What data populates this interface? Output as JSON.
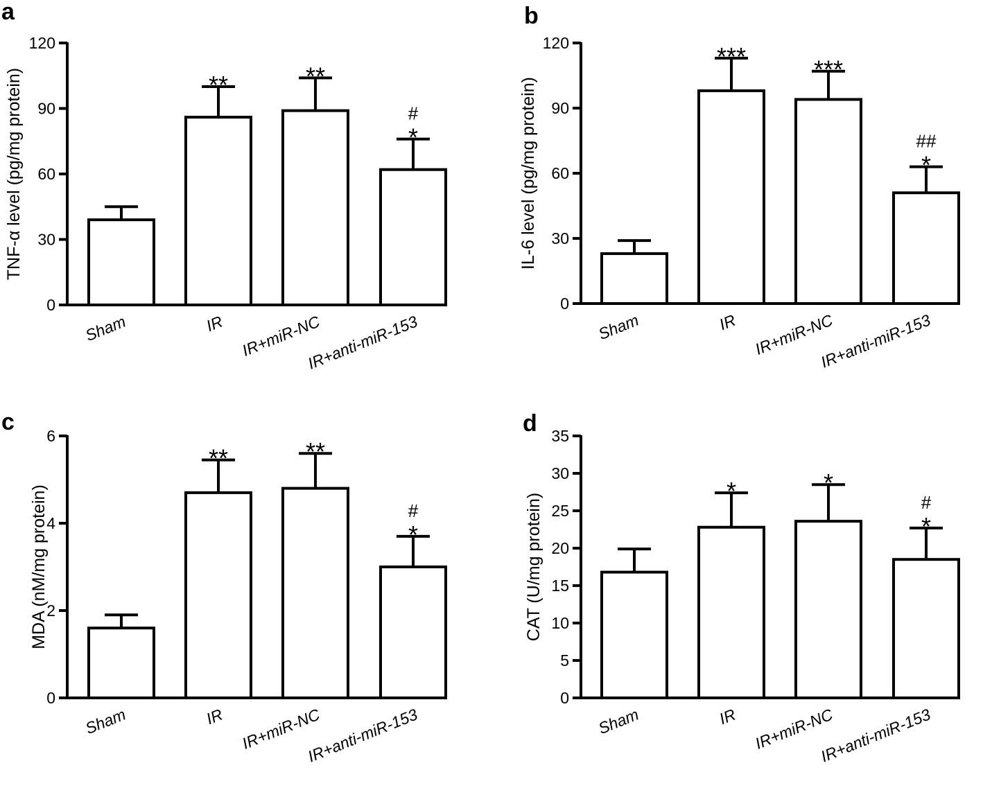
{
  "chart_data": [
    {
      "panel": "a",
      "type": "bar",
      "ylabel": "TNF-α level (pg/mg protein)",
      "categories": [
        "Sham",
        "IR",
        "IR+miR-NC",
        "IR+anti-miR-153"
      ],
      "values": [
        39,
        86,
        89,
        62
      ],
      "errors": [
        6,
        14,
        15,
        14
      ],
      "significance": [
        {
          "star": "",
          "hash": ""
        },
        {
          "star": "**",
          "hash": ""
        },
        {
          "star": "**",
          "hash": ""
        },
        {
          "star": "*",
          "hash": "#"
        }
      ],
      "yticks": [
        0,
        30,
        60,
        90,
        120
      ],
      "tick_labels": [
        "0",
        "30",
        "60",
        "90",
        "120"
      ],
      "ylim": [
        0,
        120
      ]
    },
    {
      "panel": "b",
      "type": "bar",
      "ylabel": "IL-6 level (pg/mg protein)",
      "categories": [
        "Sham",
        "IR",
        "IR+miR-NC",
        "IR+anti-miR-153"
      ],
      "values": [
        23,
        98,
        94,
        51
      ],
      "errors": [
        6,
        15,
        13,
        12
      ],
      "significance": [
        {
          "star": "",
          "hash": ""
        },
        {
          "star": "***",
          "hash": ""
        },
        {
          "star": "***",
          "hash": ""
        },
        {
          "star": "*",
          "hash": "##"
        }
      ],
      "yticks": [
        0,
        30,
        60,
        90,
        120
      ],
      "tick_labels": [
        "0",
        "30",
        "60",
        "90",
        "120"
      ],
      "ylim": [
        0,
        120
      ]
    },
    {
      "panel": "c",
      "type": "bar",
      "ylabel": "MDA (nM/mg protein)",
      "categories": [
        "Sham",
        "IR",
        "IR+miR-NC",
        "IR+anti-miR-153"
      ],
      "values": [
        1.6,
        4.7,
        4.8,
        3.0
      ],
      "errors": [
        0.3,
        0.75,
        0.8,
        0.7
      ],
      "significance": [
        {
          "star": "",
          "hash": ""
        },
        {
          "star": "**",
          "hash": ""
        },
        {
          "star": "**",
          "hash": ""
        },
        {
          "star": "*",
          "hash": "#"
        }
      ],
      "yticks": [
        0,
        2,
        4,
        6
      ],
      "tick_labels": [
        "0",
        "2",
        "4",
        "6"
      ],
      "ylim": [
        0,
        6
      ]
    },
    {
      "panel": "d",
      "type": "bar",
      "ylabel": "CAT (U/mg protein)",
      "categories": [
        "Sham",
        "IR",
        "IR+miR-NC",
        "IR+anti-miR-153"
      ],
      "values": [
        16.8,
        22.8,
        23.6,
        18.5
      ],
      "errors": [
        3.1,
        4.6,
        4.9,
        4.2
      ],
      "significance": [
        {
          "star": "",
          "hash": ""
        },
        {
          "star": "*",
          "hash": ""
        },
        {
          "star": "*",
          "hash": ""
        },
        {
          "star": "*",
          "hash": "#"
        }
      ],
      "yticks": [
        0,
        5,
        10,
        15,
        20,
        25,
        30,
        35
      ],
      "tick_labels": [
        "0",
        "5",
        "10",
        "15",
        "20",
        "25",
        "30",
        "35"
      ],
      "ylim": [
        0,
        35
      ]
    }
  ]
}
